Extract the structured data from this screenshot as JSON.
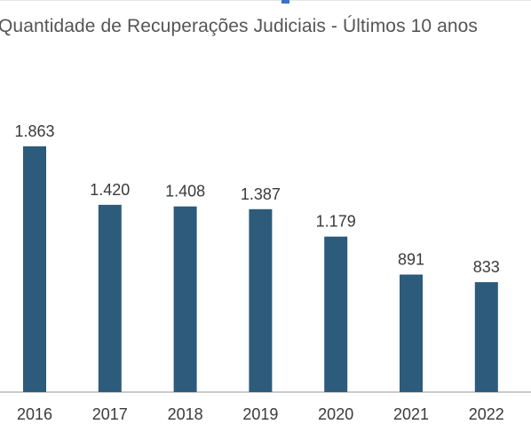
{
  "chart_data": {
    "type": "bar",
    "title": "Quantidade de Recuperações Judiciais - Últimos 10 anos",
    "categories": [
      "2016",
      "2017",
      "2018",
      "2019",
      "2020",
      "2021",
      "2022"
    ],
    "values": [
      1863,
      1420,
      1408,
      1387,
      1179,
      891,
      833
    ],
    "value_labels": [
      "1.863",
      "1.420",
      "1.408",
      "1.387",
      "1.179",
      "891",
      "833"
    ],
    "xlabel": "",
    "ylabel": "",
    "ylim": [
      0,
      1900
    ],
    "grid": false,
    "legend": "none",
    "bar_color": "#2d5b7b",
    "axis_color": "#b8b8b8"
  }
}
